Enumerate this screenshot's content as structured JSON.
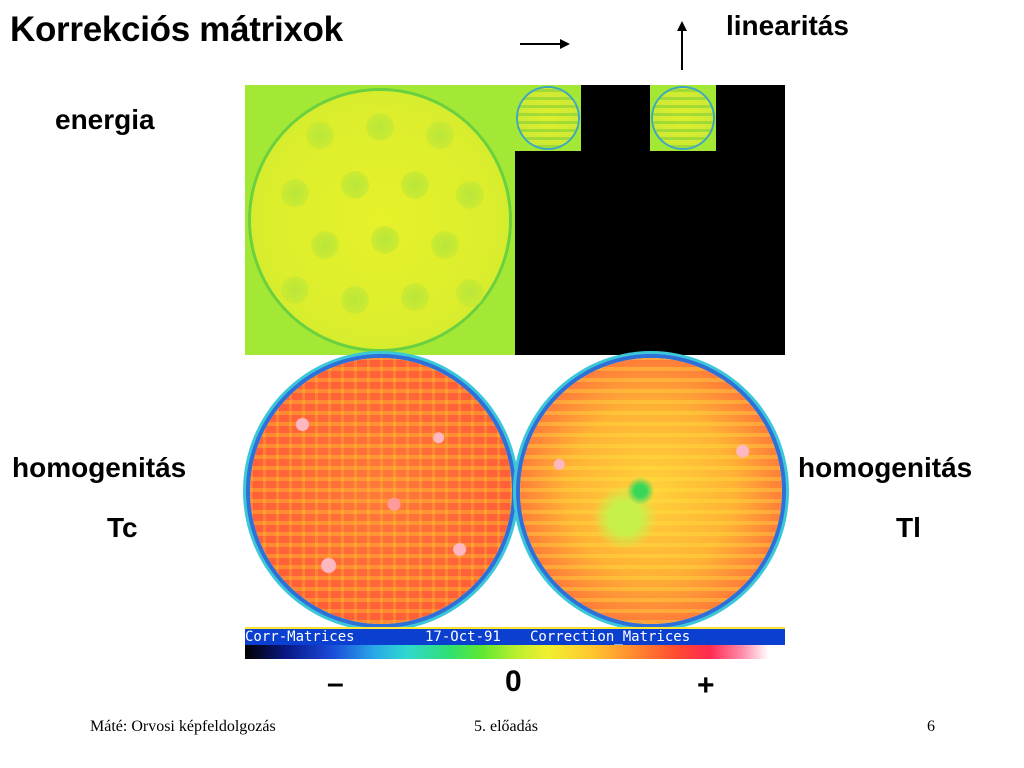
{
  "title": "Korrekciós mátrixok",
  "labels": {
    "energy": "energia",
    "linearity": "linearitás",
    "homog_left": "homogenitás",
    "homog_left_sub": "Tc",
    "homog_right": "homogenitás",
    "homog_right_sub": "Tl"
  },
  "status_bar": {
    "left": "Corr-Matrices",
    "date": "17-Oct-91",
    "right": "Correction_Matrices"
  },
  "scale": {
    "minus": "–",
    "zero": "0",
    "plus": "+"
  },
  "footer": {
    "author": "Máté: Orvosi képfeldolgozás",
    "lecture": "5. előadás",
    "page": "6"
  },
  "icons": {
    "arrow_right": "arrow-right-icon",
    "arrow_up": "arrow-up-icon"
  }
}
